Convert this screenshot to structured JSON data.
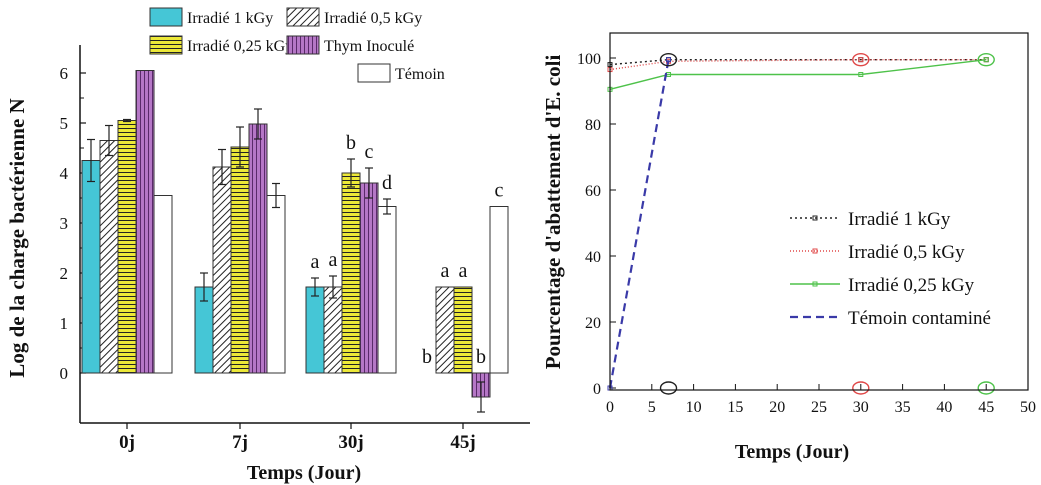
{
  "chart_data": [
    {
      "type": "bar",
      "title": "",
      "xlabel": "Temps (Jour)",
      "ylabel": "Log de la charge bactérienne N",
      "ylim": [
        -1,
        6.5
      ],
      "yticks": [
        "0",
        "1",
        "2",
        "3",
        "4",
        "5",
        "6"
      ],
      "categories": [
        "0j",
        "7j",
        "30j",
        "45j"
      ],
      "legend_position": "top",
      "series": [
        {
          "name": "Irradié 1 kGy",
          "color": "#45c6d6",
          "pattern": "solid",
          "values": [
            4.25,
            1.72,
            1.72,
            0.0
          ],
          "errors": [
            0.42,
            0.28,
            0.18,
            0.0
          ]
        },
        {
          "name": "Irradié 0,5 kGy",
          "color": "#ffffff",
          "pattern": "diagonal-hatch",
          "values": [
            4.65,
            4.12,
            1.72,
            1.72
          ],
          "errors": [
            0.3,
            0.35,
            0.22,
            0.0
          ]
        },
        {
          "name": "Irradié 0,25 kGy",
          "color": "#ece838",
          "pattern": "horizontal-lines",
          "values": [
            5.05,
            4.52,
            4.0,
            1.72
          ],
          "errors": [
            0.02,
            0.4,
            0.28,
            0.0
          ]
        },
        {
          "name": "Thym Inoculé",
          "color": "#b577c6",
          "pattern": "vertical-lines",
          "values": [
            6.05,
            4.98,
            3.8,
            -0.48
          ],
          "errors": [
            0.0,
            0.3,
            0.3,
            0.3
          ]
        },
        {
          "name": "Témoin",
          "color": "#ffffff",
          "pattern": "none",
          "values": [
            3.55,
            3.55,
            3.33,
            3.33
          ],
          "errors": [
            0.0,
            0.24,
            0.15,
            0.0
          ]
        }
      ],
      "annotations": [
        {
          "category": "30j",
          "series": "Irradié 1 kGy",
          "text": "a"
        },
        {
          "category": "30j",
          "series": "Irradié 0,5 kGy",
          "text": "a"
        },
        {
          "category": "30j",
          "series": "Irradié 0,25 kGy",
          "text": "b"
        },
        {
          "category": "30j",
          "series": "Thym Inoculé",
          "text": "c"
        },
        {
          "category": "30j",
          "series": "Témoin",
          "text": "d"
        },
        {
          "category": "45j",
          "series": "Irradié 1 kGy",
          "text": "b"
        },
        {
          "category": "45j",
          "series": "Irradié 0,5 kGy",
          "text": "a"
        },
        {
          "category": "45j",
          "series": "Irradié 0,25 kGy",
          "text": "a"
        },
        {
          "category": "45j",
          "series": "Thym Inoculé",
          "text": "b"
        },
        {
          "category": "45j",
          "series": "Témoin",
          "text": "c"
        }
      ]
    },
    {
      "type": "line",
      "title": "",
      "xlabel": "Temps (Jour)",
      "ylabel": "Pourcentage d'abattement d'E. coli",
      "xlim": [
        0,
        50
      ],
      "ylim": [
        0,
        100
      ],
      "xticks": [
        "0",
        "5",
        "10",
        "15",
        "20",
        "25",
        "30",
        "35",
        "40",
        "45",
        "50"
      ],
      "yticks": [
        "0",
        "20",
        "40",
        "60",
        "80",
        "100"
      ],
      "legend_position": "center-right",
      "series": [
        {
          "name": "Irradié 1 kGy",
          "color": "#222222",
          "dash": "2,3",
          "x": [
            0,
            7,
            30,
            45
          ],
          "y": [
            98,
            99.5,
            99.5,
            99.5
          ]
        },
        {
          "name": "Irradié 0,5 kGy",
          "color": "#e04848",
          "dash": "1,2",
          "x": [
            0,
            7,
            30,
            45
          ],
          "y": [
            96.5,
            99,
            99.5,
            99.5
          ]
        },
        {
          "name": "Irradié 0,25 kGy",
          "color": "#4ec24a",
          "dash": "",
          "x": [
            0,
            7,
            30,
            45
          ],
          "y": [
            90.5,
            95,
            95,
            99.5
          ]
        },
        {
          "name": "Témoin contaminé",
          "color": "#3a3aa8",
          "dash": "8,5",
          "x": [
            0,
            7
          ],
          "y": [
            0,
            99.5
          ]
        }
      ],
      "circle_markers": [
        {
          "x": 7,
          "y": 99.5,
          "color": "#222222"
        },
        {
          "x": 30,
          "y": 99.5,
          "color": "#e04848"
        },
        {
          "x": 45,
          "y": 99.5,
          "color": "#4ec24a"
        },
        {
          "x": 7,
          "y": 0,
          "color": "#222222"
        },
        {
          "x": 30,
          "y": 0,
          "color": "#e04848"
        },
        {
          "x": 45,
          "y": 0,
          "color": "#4ec24a"
        }
      ]
    }
  ]
}
